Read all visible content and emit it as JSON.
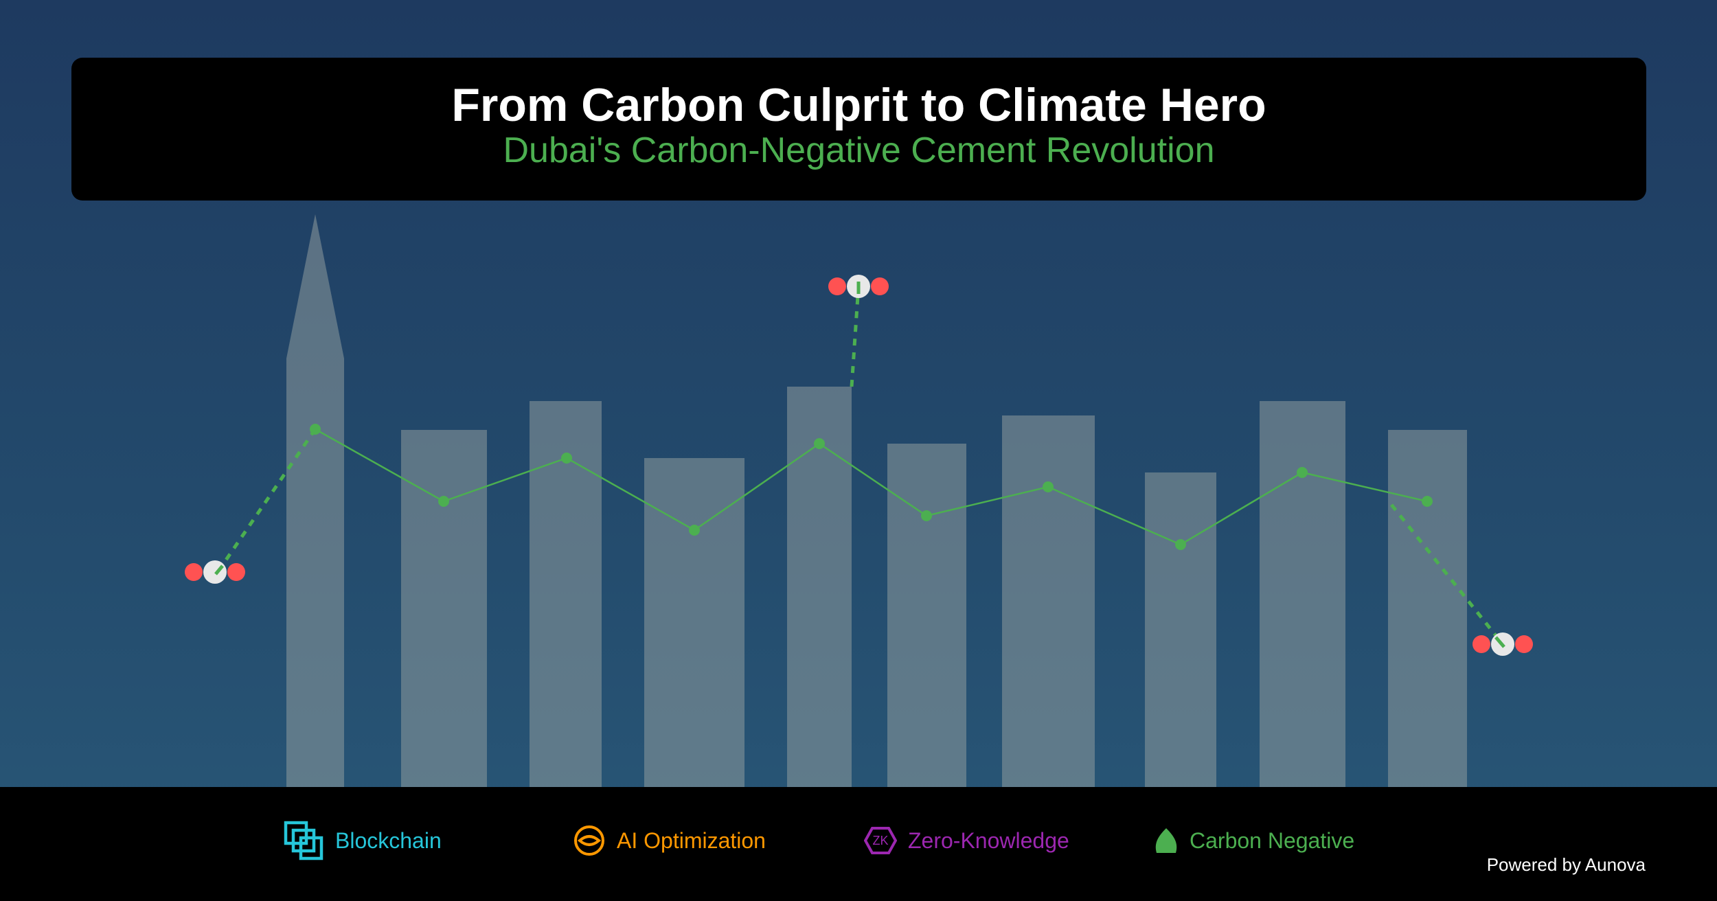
{
  "header": {
    "title": "From Carbon Culprit to Climate Hero",
    "subtitle": "Dubai's Carbon-Negative Cement Revolution"
  },
  "colors": {
    "accent_green": "#4caf50",
    "co2_red": "#ff5252",
    "blockchain": "#26c6da",
    "ai": "#ff9800",
    "zero_knowledge": "#9c27b0",
    "header_background": "#000000"
  },
  "features": [
    {
      "label": "Blockchain",
      "icon": "blockchain-icon",
      "color": "#26c6da"
    },
    {
      "label": "AI Optimization",
      "icon": "ai-eye-icon",
      "color": "#ff9800"
    },
    {
      "label": "Zero-Knowledge",
      "icon": "zero-knowledge-hexagon-icon",
      "color": "#9c27b0"
    },
    {
      "label": "Carbon Negative",
      "icon": "leaf-icon",
      "color": "#4caf50"
    }
  ],
  "footer": {
    "powered_by": "Powered by Aunova"
  }
}
